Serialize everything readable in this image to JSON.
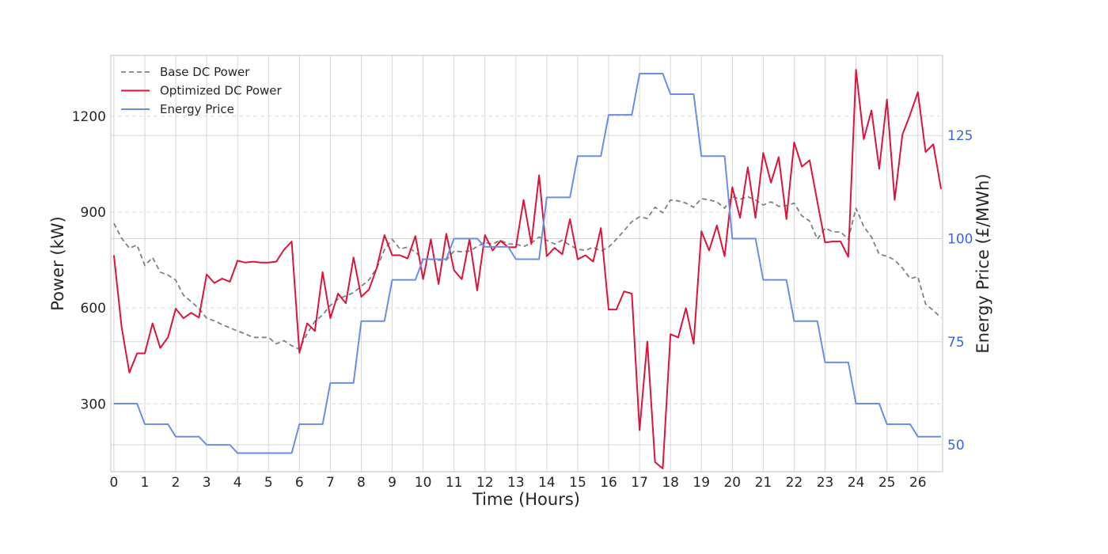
{
  "chart_data": {
    "type": "line",
    "xlabel": "Time (Hours)",
    "ylabel": "Power (kW)",
    "y2label": "Energy Price (£/MWh)",
    "xlim": [
      -0.1,
      26.8
    ],
    "ylim": [
      88,
      1390
    ],
    "y2lim": [
      43.5,
      144.4
    ],
    "xticks": [
      0,
      1,
      2,
      3,
      4,
      5,
      6,
      7,
      8,
      9,
      10,
      11,
      12,
      13,
      14,
      15,
      16,
      17,
      18,
      19,
      20,
      21,
      22,
      23,
      24,
      25,
      26
    ],
    "yticks": [
      300,
      600,
      900,
      1200
    ],
    "y2ticks": [
      50,
      75,
      100,
      125
    ],
    "grid": true,
    "legend_position": "top-left",
    "colors": {
      "base": "#808080",
      "optimized": "#dc143c",
      "price": "#6a8ee5",
      "right_axis": "#3b65d6"
    },
    "series": [
      {
        "name": "Base DC Power",
        "axis": "left",
        "style": "dashed",
        "values": [
          [
            0,
            865
          ],
          [
            0.25,
            818
          ],
          [
            0.5,
            787
          ],
          [
            0.75,
            797
          ],
          [
            1,
            733
          ],
          [
            1.25,
            758
          ],
          [
            1.5,
            712
          ],
          [
            1.75,
            703
          ],
          [
            2,
            687
          ],
          [
            2.25,
            640
          ],
          [
            2.5,
            620
          ],
          [
            2.75,
            598
          ],
          [
            3,
            568
          ],
          [
            3.25,
            560
          ],
          [
            3.5,
            548
          ],
          [
            3.75,
            538
          ],
          [
            4,
            528
          ],
          [
            4.25,
            519
          ],
          [
            4.5,
            508
          ],
          [
            4.75,
            508
          ],
          [
            5,
            508
          ],
          [
            5.25,
            488
          ],
          [
            5.5,
            498
          ],
          [
            5.75,
            482
          ],
          [
            6,
            471
          ],
          [
            6.25,
            520
          ],
          [
            6.5,
            558
          ],
          [
            6.75,
            578
          ],
          [
            7,
            608
          ],
          [
            7.25,
            628
          ],
          [
            7.5,
            638
          ],
          [
            7.75,
            648
          ],
          [
            8,
            668
          ],
          [
            8.25,
            688
          ],
          [
            8.5,
            725
          ],
          [
            8.75,
            782
          ],
          [
            9,
            815
          ],
          [
            9.25,
            785
          ],
          [
            9.5,
            790
          ],
          [
            9.75,
            775
          ],
          [
            10,
            752
          ],
          [
            10.25,
            752
          ],
          [
            10.5,
            750
          ],
          [
            10.75,
            750
          ],
          [
            11,
            778
          ],
          [
            11.25,
            776
          ],
          [
            11.5,
            778
          ],
          [
            11.75,
            792
          ],
          [
            12,
            805
          ],
          [
            12.25,
            800
          ],
          [
            12.5,
            812
          ],
          [
            12.75,
            800
          ],
          [
            13,
            800
          ],
          [
            13.25,
            792
          ],
          [
            13.5,
            803
          ],
          [
            13.75,
            822
          ],
          [
            14,
            812
          ],
          [
            14.25,
            800
          ],
          [
            14.5,
            812
          ],
          [
            14.75,
            796
          ],
          [
            15,
            784
          ],
          [
            15.25,
            780
          ],
          [
            15.5,
            790
          ],
          [
            15.75,
            778
          ],
          [
            16,
            790
          ],
          [
            16.25,
            815
          ],
          [
            16.5,
            842
          ],
          [
            16.75,
            870
          ],
          [
            17,
            885
          ],
          [
            17.25,
            880
          ],
          [
            17.5,
            915
          ],
          [
            17.75,
            898
          ],
          [
            18,
            938
          ],
          [
            18.25,
            935
          ],
          [
            18.5,
            928
          ],
          [
            18.75,
            915
          ],
          [
            19,
            942
          ],
          [
            19.25,
            938
          ],
          [
            19.5,
            932
          ],
          [
            19.75,
            912
          ],
          [
            20,
            948
          ],
          [
            20.25,
            940
          ],
          [
            20.5,
            948
          ],
          [
            20.75,
            938
          ],
          [
            21,
            922
          ],
          [
            21.25,
            932
          ],
          [
            21.5,
            918
          ],
          [
            21.75,
            920
          ],
          [
            22,
            928
          ],
          [
            22.25,
            888
          ],
          [
            22.5,
            872
          ],
          [
            22.75,
            815
          ],
          [
            23,
            850
          ],
          [
            23.25,
            838
          ],
          [
            23.5,
            838
          ],
          [
            23.75,
            815
          ],
          [
            24,
            912
          ],
          [
            24.25,
            855
          ],
          [
            24.5,
            822
          ],
          [
            24.75,
            768
          ],
          [
            25,
            762
          ],
          [
            25.25,
            750
          ],
          [
            25.5,
            725
          ],
          [
            25.75,
            692
          ],
          [
            26,
            698
          ],
          [
            26.25,
            612
          ],
          [
            26.5,
            592
          ],
          [
            26.75,
            570
          ]
        ]
      },
      {
        "name": "Optimized DC Power",
        "axis": "left",
        "style": "solid",
        "values": [
          [
            0,
            765
          ],
          [
            0.25,
            540
          ],
          [
            0.5,
            398
          ],
          [
            0.75,
            458
          ],
          [
            1,
            458
          ],
          [
            1.25,
            552
          ],
          [
            1.5,
            475
          ],
          [
            1.75,
            508
          ],
          [
            2,
            598
          ],
          [
            2.25,
            568
          ],
          [
            2.5,
            585
          ],
          [
            2.75,
            570
          ],
          [
            3,
            705
          ],
          [
            3.25,
            678
          ],
          [
            3.5,
            692
          ],
          [
            3.75,
            682
          ],
          [
            4,
            748
          ],
          [
            4.25,
            742
          ],
          [
            4.5,
            745
          ],
          [
            4.75,
            742
          ],
          [
            5,
            742
          ],
          [
            5.25,
            745
          ],
          [
            5.5,
            782
          ],
          [
            5.75,
            808
          ],
          [
            6,
            460
          ],
          [
            6.25,
            552
          ],
          [
            6.5,
            528
          ],
          [
            6.75,
            712
          ],
          [
            7,
            568
          ],
          [
            7.25,
            645
          ],
          [
            7.5,
            615
          ],
          [
            7.75,
            758
          ],
          [
            8,
            635
          ],
          [
            8.25,
            658
          ],
          [
            8.5,
            725
          ],
          [
            8.75,
            828
          ],
          [
            9,
            765
          ],
          [
            9.25,
            765
          ],
          [
            9.5,
            755
          ],
          [
            9.75,
            825
          ],
          [
            10,
            690
          ],
          [
            10.25,
            815
          ],
          [
            10.5,
            675
          ],
          [
            10.75,
            832
          ],
          [
            11,
            718
          ],
          [
            11.25,
            690
          ],
          [
            11.5,
            815
          ],
          [
            11.75,
            655
          ],
          [
            12,
            828
          ],
          [
            12.25,
            780
          ],
          [
            12.5,
            810
          ],
          [
            12.75,
            790
          ],
          [
            13,
            790
          ],
          [
            13.25,
            938
          ],
          [
            13.5,
            800
          ],
          [
            13.75,
            1015
          ],
          [
            14,
            762
          ],
          [
            14.25,
            788
          ],
          [
            14.5,
            768
          ],
          [
            14.75,
            878
          ],
          [
            15,
            752
          ],
          [
            15.25,
            765
          ],
          [
            15.5,
            745
          ],
          [
            15.75,
            850
          ],
          [
            16,
            595
          ],
          [
            16.25,
            595
          ],
          [
            16.5,
            652
          ],
          [
            16.75,
            645
          ],
          [
            17,
            218
          ],
          [
            17.25,
            495
          ],
          [
            17.5,
            118
          ],
          [
            17.75,
            98
          ],
          [
            18,
            518
          ],
          [
            18.25,
            508
          ],
          [
            18.5,
            600
          ],
          [
            18.75,
            488
          ],
          [
            19,
            840
          ],
          [
            19.25,
            780
          ],
          [
            19.5,
            858
          ],
          [
            19.75,
            762
          ],
          [
            20,
            978
          ],
          [
            20.25,
            882
          ],
          [
            20.5,
            1040
          ],
          [
            20.75,
            882
          ],
          [
            21,
            1085
          ],
          [
            21.25,
            992
          ],
          [
            21.5,
            1072
          ],
          [
            21.75,
            878
          ],
          [
            22,
            1118
          ],
          [
            22.25,
            1042
          ],
          [
            22.5,
            1062
          ],
          [
            22.75,
            932
          ],
          [
            23,
            805
          ],
          [
            23.25,
            808
          ],
          [
            23.5,
            808
          ],
          [
            23.75,
            760
          ],
          [
            24,
            1345
          ],
          [
            24.25,
            1128
          ],
          [
            24.5,
            1218
          ],
          [
            24.75,
            1035
          ],
          [
            25,
            1252
          ],
          [
            25.25,
            938
          ],
          [
            25.5,
            1142
          ],
          [
            25.75,
            1205
          ],
          [
            26,
            1275
          ],
          [
            26.25,
            1088
          ],
          [
            26.5,
            1112
          ],
          [
            26.75,
            972
          ]
        ]
      },
      {
        "name": "Energy Price",
        "axis": "right",
        "style": "solid",
        "values": [
          [
            0,
            60
          ],
          [
            0.75,
            60
          ],
          [
            1,
            55
          ],
          [
            1.75,
            55
          ],
          [
            2,
            52
          ],
          [
            2.75,
            52
          ],
          [
            3,
            50
          ],
          [
            3.75,
            50
          ],
          [
            4,
            48
          ],
          [
            5.75,
            48
          ],
          [
            6,
            55
          ],
          [
            6.75,
            55
          ],
          [
            7,
            65
          ],
          [
            7.75,
            65
          ],
          [
            8,
            80
          ],
          [
            8.75,
            80
          ],
          [
            9,
            90
          ],
          [
            9.75,
            90
          ],
          [
            10,
            95
          ],
          [
            10.75,
            95
          ],
          [
            11,
            100
          ],
          [
            11.75,
            100
          ],
          [
            12,
            98
          ],
          [
            12.75,
            98
          ],
          [
            13,
            95
          ],
          [
            13.75,
            95
          ],
          [
            14,
            110
          ],
          [
            14.75,
            110
          ],
          [
            15,
            120
          ],
          [
            15.75,
            120
          ],
          [
            16,
            130
          ],
          [
            16.75,
            130
          ],
          [
            17,
            140
          ],
          [
            17.75,
            140
          ],
          [
            18,
            135
          ],
          [
            18.75,
            135
          ],
          [
            19,
            120
          ],
          [
            19.75,
            120
          ],
          [
            20,
            100
          ],
          [
            20.75,
            100
          ],
          [
            21,
            90
          ],
          [
            21.75,
            90
          ],
          [
            22,
            80
          ],
          [
            22.75,
            80
          ],
          [
            23,
            70
          ],
          [
            23.75,
            70
          ],
          [
            24,
            60
          ],
          [
            24.75,
            60
          ],
          [
            25,
            55
          ],
          [
            25.75,
            55
          ],
          [
            26,
            52
          ],
          [
            26.75,
            52
          ]
        ]
      }
    ]
  }
}
